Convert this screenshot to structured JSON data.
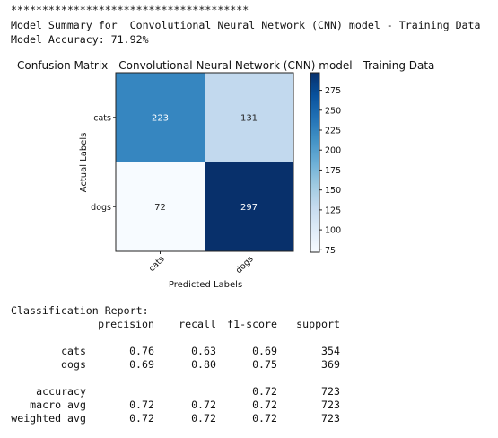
{
  "output": {
    "stars": "**************************************",
    "summary_line": "Model Summary for  Convolutional Neural Network (CNN) model - Training Data",
    "accuracy_line": "Model Accuracy: 71.92%"
  },
  "chart_data": {
    "type": "heatmap",
    "title": "Confusion Matrix - Convolutional Neural Network (CNN) model - Training Data",
    "xlabel": "Predicted Labels",
    "ylabel": "Actual Labels",
    "x_categories": [
      "cats",
      "dogs"
    ],
    "y_categories": [
      "cats",
      "dogs"
    ],
    "values": [
      [
        223,
        131
      ],
      [
        72,
        297
      ]
    ],
    "colormap": "Blues",
    "colorbar": {
      "min": 72,
      "max": 297,
      "ticks": [
        75,
        100,
        125,
        150,
        175,
        200,
        225,
        250,
        275
      ],
      "tick_labels": [
        "75",
        "100",
        "125",
        "150",
        "175",
        "200",
        "225",
        "250",
        "275"
      ]
    },
    "colors": {
      "low": "#f7fbff",
      "high": "#08306b"
    }
  },
  "report": {
    "title": "Classification Report:",
    "headers": [
      "precision",
      "recall",
      "f1-score",
      "support"
    ],
    "rows": [
      {
        "label": "cats",
        "precision": "0.76",
        "recall": "0.63",
        "f1": "0.69",
        "support": "354"
      },
      {
        "label": "dogs",
        "precision": "0.69",
        "recall": "0.80",
        "f1": "0.75",
        "support": "369"
      },
      {
        "label": "",
        "precision": "",
        "recall": "",
        "f1": "",
        "support": ""
      },
      {
        "label": "accuracy",
        "precision": "",
        "recall": "",
        "f1": "0.72",
        "support": "723"
      },
      {
        "label": "macro avg",
        "precision": "0.72",
        "recall": "0.72",
        "f1": "0.72",
        "support": "723"
      },
      {
        "label": "weighted avg",
        "precision": "0.72",
        "recall": "0.72",
        "f1": "0.72",
        "support": "723"
      }
    ]
  }
}
